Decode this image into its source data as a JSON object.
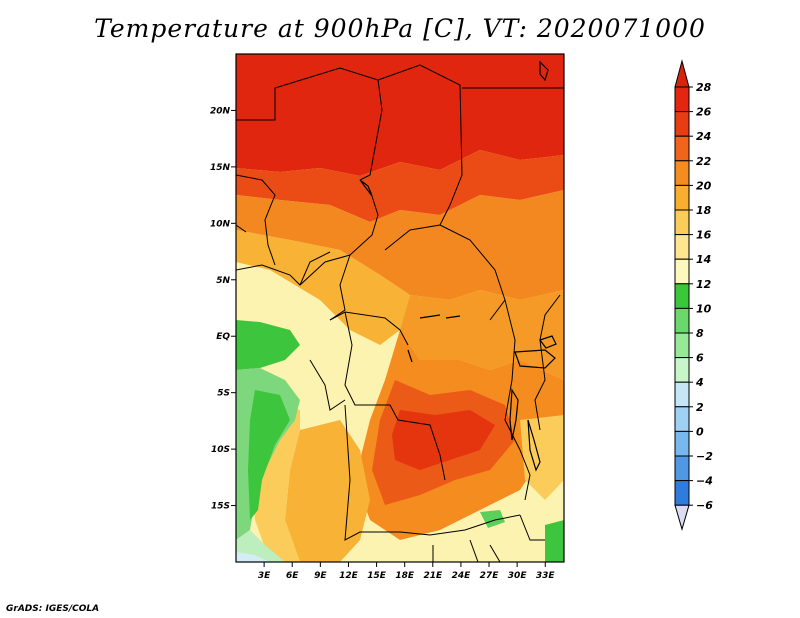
{
  "title": "Temperature at 900hPa [C], VT: 2020071000",
  "credit": "GrADS: IGES/COLA",
  "chart_data": {
    "type": "heatmap",
    "title": "Temperature at 900hPa [C], VT: 2020071000",
    "variable": "Temperature",
    "level": "900hPa",
    "units": "C",
    "valid_time": "2020071000",
    "lon_range": [
      0,
      35
    ],
    "lat_range": [
      -20,
      25
    ],
    "x_ticks": [
      {
        "value": 3,
        "label": "3E"
      },
      {
        "value": 6,
        "label": "6E"
      },
      {
        "value": 9,
        "label": "9E"
      },
      {
        "value": 12,
        "label": "12E"
      },
      {
        "value": 15,
        "label": "15E"
      },
      {
        "value": 18,
        "label": "18E"
      },
      {
        "value": 21,
        "label": "21E"
      },
      {
        "value": 24,
        "label": "24E"
      },
      {
        "value": 27,
        "label": "27E"
      },
      {
        "value": 30,
        "label": "30E"
      },
      {
        "value": 33,
        "label": "33E"
      }
    ],
    "y_ticks": [
      {
        "value": 20,
        "label": "20N"
      },
      {
        "value": 15,
        "label": "15N"
      },
      {
        "value": 10,
        "label": "10N"
      },
      {
        "value": 5,
        "label": "5N"
      },
      {
        "value": 0,
        "label": "EQ"
      },
      {
        "value": -5,
        "label": "5S"
      },
      {
        "value": -10,
        "label": "10S"
      },
      {
        "value": -15,
        "label": "15S"
      }
    ],
    "colorbar": {
      "labels": [
        "28",
        "26",
        "24",
        "22",
        "20",
        "18",
        "16",
        "14",
        "12",
        "10",
        "8",
        "6",
        "4",
        "2",
        "0",
        "−2",
        "−4",
        "−6"
      ],
      "colors_top_to_bottom": [
        "#e4250f",
        "#e83d12",
        "#f0641b",
        "#f48c20",
        "#f8ae2e",
        "#fbcc5a",
        "#fde68f",
        "#fdf8bb",
        "#3ac73a",
        "#6ad86a",
        "#97e897",
        "#c8f6c8",
        "#c6e6f7",
        "#a0d0f3",
        "#78b8ee",
        "#4e98e4",
        "#2e7cdc",
        "#1a5fcc",
        "#1040b4",
        "#0a1f86"
      ],
      "max_arrow_color": "#d8230f",
      "min_arrow_color": "#dcdcf4"
    }
  }
}
